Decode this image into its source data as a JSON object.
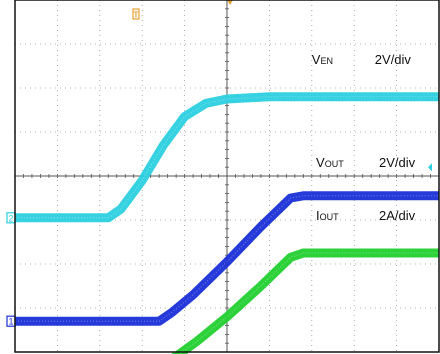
{
  "chart_data": {
    "type": "line",
    "grid": true,
    "x_divisions": 10,
    "y_divisions": 8,
    "trigger_marker_label": "T",
    "colors": {
      "frame": "#111111",
      "grid": "#9a9a9a",
      "background": "#ffffff",
      "trigger_marker": "#e8a030"
    },
    "series": [
      {
        "id": "ven",
        "label_main": "V",
        "label_sub": "EN",
        "scale": "2V/div",
        "channel": "2",
        "color": "#2bd0e0",
        "marker_color": "#2bd0e0",
        "x": [
          0,
          2.2,
          2.5,
          3.0,
          3.5,
          4.0,
          4.5,
          5.0,
          6.0,
          7.0,
          8.0,
          10.0
        ],
        "y": [
          4.95,
          4.95,
          4.75,
          4.1,
          3.3,
          2.65,
          2.35,
          2.25,
          2.2,
          2.2,
          2.2,
          2.2
        ]
      },
      {
        "id": "vout",
        "label_main": "V",
        "label_sub": "OUT",
        "scale": "2V/div",
        "channel": "1",
        "color": "#1a2fd8",
        "marker_color": "#1a2fd8",
        "x": [
          0,
          3.4,
          3.7,
          4.2,
          5.0,
          5.8,
          6.5,
          6.8,
          10.0
        ],
        "y": [
          7.3,
          7.3,
          7.1,
          6.7,
          5.95,
          5.15,
          4.5,
          4.45,
          4.45
        ]
      },
      {
        "id": "iout",
        "label_main": "I",
        "label_sub": "OUT",
        "scale": "2A/div",
        "channel": "4",
        "color": "#22d030",
        "marker_color": "#22d030",
        "x": [
          0,
          3.5,
          3.8,
          4.3,
          5.0,
          5.8,
          6.5,
          6.8,
          10.0
        ],
        "y": [
          8.25,
          8.25,
          8.1,
          7.75,
          7.2,
          6.5,
          5.85,
          5.75,
          5.75
        ]
      }
    ],
    "annotations": [
      {
        "series": "ven",
        "label_x": 7.0,
        "label_y": 1.45
      },
      {
        "series": "vout",
        "label_x": 7.1,
        "label_y": 3.8
      },
      {
        "series": "iout",
        "label_x": 7.1,
        "label_y": 5.0
      }
    ]
  }
}
